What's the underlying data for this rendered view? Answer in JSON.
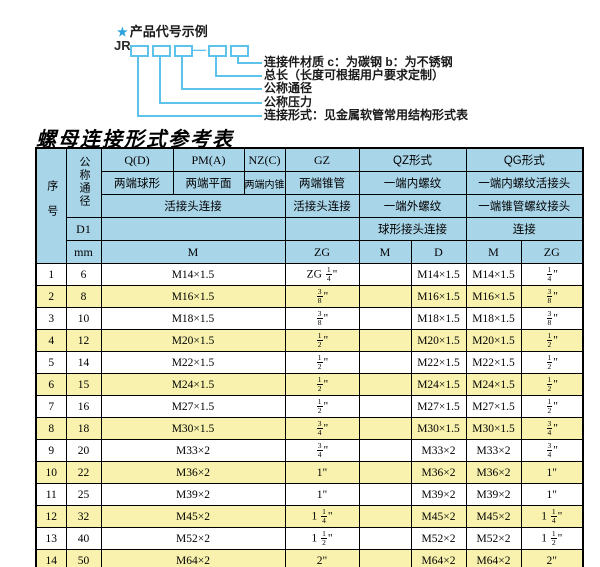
{
  "colors": {
    "header_blue": "#a9d5e9",
    "row_yellow": "#f8f2ae",
    "diagram_cyan": "#5ec3ea",
    "star_blue": "#2aa2da",
    "border": "#000000"
  },
  "diagram": {
    "star_icon": "★",
    "heading": "产品代号示例",
    "code_prefix": "JR",
    "separator": "—",
    "callouts": [
      "连接件材质  c：为碳钢  b：为不锈钢",
      "总长（长度可根据用户要求定制）",
      "公称通径",
      "公称压力",
      "连接形式：见金属软管常用结构形式表"
    ]
  },
  "table": {
    "title": "螺母连接形式参考表",
    "header": {
      "seq": "序号",
      "dn": "公称通径",
      "d1": "D1",
      "unit": "mm",
      "q": "Q(D)",
      "q_sub": "两端球形",
      "pm": "PM(A)",
      "pm_sub": "两端平面",
      "nz": "NZ(C)",
      "nz_sub": "两端内锥",
      "gz": "GZ",
      "gz_sub": "两端锥管",
      "qz": "QZ形式",
      "qz_sub1": "一端内螺纹",
      "qz_sub2": "一端外螺纹",
      "qz_sub3": "球形接头连接",
      "qg": "QG形式",
      "qg_sub1": "一端内螺纹活接头",
      "qg_sub2": "一端锥管螺纹接头",
      "qg_sub3": "连接",
      "union_left": "活接头连接",
      "union_gz": "活接头连接",
      "m_wide": "M",
      "gz_zg": "ZG",
      "qz_m": "M",
      "qz_d": "D",
      "qg_m": "M",
      "qg_zg": "ZG"
    },
    "rows": [
      {
        "no": "1",
        "dn": "6",
        "m": "M14×1.5",
        "gz": "ZG 1/4\"",
        "qz_m": "",
        "qz_d": "M14×1.5",
        "qg_m": "M14×1.5",
        "qg_zg": "1/4\""
      },
      {
        "no": "2",
        "dn": "8",
        "m": "M16×1.5",
        "gz": "3/8\"",
        "qz_m": "",
        "qz_d": "M16×1.5",
        "qg_m": "M16×1.5",
        "qg_zg": "3/8\""
      },
      {
        "no": "3",
        "dn": "10",
        "m": "M18×1.5",
        "gz": "3/8\"",
        "qz_m": "",
        "qz_d": "M18×1.5",
        "qg_m": "M18×1.5",
        "qg_zg": "3/8\""
      },
      {
        "no": "4",
        "dn": "12",
        "m": "M20×1.5",
        "gz": "1/2\"",
        "qz_m": "",
        "qz_d": "M20×1.5",
        "qg_m": "M20×1.5",
        "qg_zg": "1/2\""
      },
      {
        "no": "5",
        "dn": "14",
        "m": "M22×1.5",
        "gz": "1/2\"",
        "qz_m": "",
        "qz_d": "M22×1.5",
        "qg_m": "M22×1.5",
        "qg_zg": "1/2\""
      },
      {
        "no": "6",
        "dn": "15",
        "m": "M24×1.5",
        "gz": "1/2\"",
        "qz_m": "",
        "qz_d": "M24×1.5",
        "qg_m": "M24×1.5",
        "qg_zg": "1/2\""
      },
      {
        "no": "7",
        "dn": "16",
        "m": "M27×1.5",
        "gz": "1/2\"",
        "qz_m": "",
        "qz_d": "M27×1.5",
        "qg_m": "M27×1.5",
        "qg_zg": "1/2\""
      },
      {
        "no": "8",
        "dn": "18",
        "m": "M30×1.5",
        "gz": "3/4\"",
        "qz_m": "",
        "qz_d": "M30×1.5",
        "qg_m": "M30×1.5",
        "qg_zg": "3/4\""
      },
      {
        "no": "9",
        "dn": "20",
        "m": "M33×2",
        "gz": "3/4\"",
        "qz_m": "",
        "qz_d": "M33×2",
        "qg_m": "M33×2",
        "qg_zg": "3/4\""
      },
      {
        "no": "10",
        "dn": "22",
        "m": "M36×2",
        "gz": "1\"",
        "qz_m": "",
        "qz_d": "M36×2",
        "qg_m": "M36×2",
        "qg_zg": "1\""
      },
      {
        "no": "11",
        "dn": "25",
        "m": "M39×2",
        "gz": "1\"",
        "qz_m": "",
        "qz_d": "M39×2",
        "qg_m": "M39×2",
        "qg_zg": "1\""
      },
      {
        "no": "12",
        "dn": "32",
        "m": "M45×2",
        "gz": "1 1/4\"",
        "qz_m": "",
        "qz_d": "M45×2",
        "qg_m": "M45×2",
        "qg_zg": "1 1/4\""
      },
      {
        "no": "13",
        "dn": "40",
        "m": "M52×2",
        "gz": "1 1/2\"",
        "qz_m": "",
        "qz_d": "M52×2",
        "qg_m": "M52×2",
        "qg_zg": "1 1/2\""
      },
      {
        "no": "14",
        "dn": "50",
        "m": "M64×2",
        "gz": "2\"",
        "qz_m": "",
        "qz_d": "M64×2",
        "qg_m": "M64×2",
        "qg_zg": "2\""
      }
    ]
  }
}
